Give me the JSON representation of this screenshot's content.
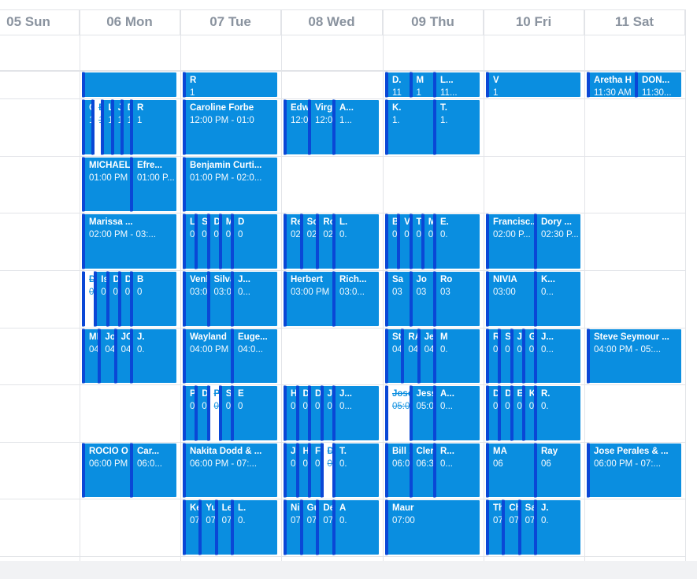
{
  "days": [
    "05 Sun",
    "06 Mon",
    "07 Tue",
    "08 Wed",
    "09 Thu",
    "10 Fri",
    "11 Sat"
  ],
  "events": [
    {
      "day": 1,
      "row": 0,
      "title": "",
      "time": ""
    },
    {
      "day": 1,
      "row": 1,
      "title": "C",
      "time": "1"
    },
    {
      "day": 1,
      "row": 1,
      "title": "B",
      "time": "1",
      "cancelled": true
    },
    {
      "day": 1,
      "row": 1,
      "title": "L",
      "time": "1"
    },
    {
      "day": 1,
      "row": 1,
      "title": "J",
      "time": "1"
    },
    {
      "day": 1,
      "row": 1,
      "title": "D",
      "time": "1"
    },
    {
      "day": 1,
      "row": 1,
      "title": "R",
      "time": "1"
    },
    {
      "day": 1,
      "row": 2,
      "title": "MICHAEL",
      "time": "01:00 PM"
    },
    {
      "day": 1,
      "row": 2,
      "title": "Efre...",
      "time": "01:00 P..."
    },
    {
      "day": 1,
      "row": 3,
      "title": "Marissa ...",
      "time": "02:00 PM - 03:..."
    },
    {
      "day": 1,
      "row": 4,
      "title": "Da",
      "time": "03",
      "cancelled": true
    },
    {
      "day": 1,
      "row": 4,
      "title": "Isa",
      "time": "03"
    },
    {
      "day": 1,
      "row": 4,
      "title": "Da",
      "time": "03"
    },
    {
      "day": 1,
      "row": 4,
      "title": "Da",
      "time": "03"
    },
    {
      "day": 1,
      "row": 4,
      "title": "B",
      "time": "0"
    },
    {
      "day": 1,
      "row": 5,
      "title": "MEL",
      "time": "04"
    },
    {
      "day": 1,
      "row": 5,
      "title": "Jos",
      "time": "04"
    },
    {
      "day": 1,
      "row": 5,
      "title": "JOS",
      "time": "04"
    },
    {
      "day": 1,
      "row": 5,
      "title": "J.",
      "time": "0."
    },
    {
      "day": 1,
      "row": 7,
      "title": "ROCIO O",
      "time": "06:00 PM"
    },
    {
      "day": 1,
      "row": 7,
      "title": "Car...",
      "time": "06:0..."
    },
    {
      "day": 2,
      "row": 0,
      "title": "R",
      "time": "1"
    },
    {
      "day": 2,
      "row": 1,
      "title": "Caroline Forbe",
      "time": "12:00 PM - 01:0"
    },
    {
      "day": 2,
      "row": 2,
      "title": "Benjamin Curti...",
      "time": "01:00 PM - 02:0..."
    },
    {
      "day": 2,
      "row": 3,
      "title": "Le",
      "time": "02"
    },
    {
      "day": 2,
      "row": 3,
      "title": "St",
      "time": "02"
    },
    {
      "day": 2,
      "row": 3,
      "title": "Da",
      "time": "02"
    },
    {
      "day": 2,
      "row": 3,
      "title": "M.",
      "time": "02"
    },
    {
      "day": 2,
      "row": 3,
      "title": "D",
      "time": "0"
    },
    {
      "day": 2,
      "row": 4,
      "title": "Venk",
      "time": "03:00"
    },
    {
      "day": 2,
      "row": 4,
      "title": "Silva",
      "time": "03:00"
    },
    {
      "day": 2,
      "row": 4,
      "title": "J...",
      "time": "0..."
    },
    {
      "day": 2,
      "row": 5,
      "title": "Wayland",
      "time": "04:00 PM"
    },
    {
      "day": 2,
      "row": 5,
      "title": "Euge...",
      "time": "04:0..."
    },
    {
      "day": 2,
      "row": 6,
      "title": "Pa",
      "time": "05"
    },
    {
      "day": 2,
      "row": 6,
      "title": "De",
      "time": "05"
    },
    {
      "day": 2,
      "row": 6,
      "title": "PJ",
      "time": "05",
      "cancelled": true
    },
    {
      "day": 2,
      "row": 6,
      "title": "Sh",
      "time": "05"
    },
    {
      "day": 2,
      "row": 6,
      "title": "E",
      "time": "0"
    },
    {
      "day": 2,
      "row": 7,
      "title": "Nakita Dodd & ...",
      "time": "06:00 PM - 07:..."
    },
    {
      "day": 2,
      "row": 8,
      "title": "Kei",
      "time": "07"
    },
    {
      "day": 2,
      "row": 8,
      "title": "Yul",
      "time": "07"
    },
    {
      "day": 2,
      "row": 8,
      "title": "Leo",
      "time": "07"
    },
    {
      "day": 2,
      "row": 8,
      "title": "L.",
      "time": "0."
    },
    {
      "day": 3,
      "row": 1,
      "title": "Edwa",
      "time": "12:00"
    },
    {
      "day": 3,
      "row": 1,
      "title": "Virgil",
      "time": "12:00"
    },
    {
      "day": 3,
      "row": 1,
      "title": "A...",
      "time": "1..."
    },
    {
      "day": 3,
      "row": 3,
      "title": "Ren",
      "time": "02"
    },
    {
      "day": 3,
      "row": 3,
      "title": "Sco",
      "time": "02"
    },
    {
      "day": 3,
      "row": 3,
      "title": "Rob",
      "time": "02"
    },
    {
      "day": 3,
      "row": 3,
      "title": "L.",
      "time": "0."
    },
    {
      "day": 3,
      "row": 4,
      "title": "Herbert",
      "time": "03:00 PM"
    },
    {
      "day": 3,
      "row": 4,
      "title": "Rich...",
      "time": "03:0..."
    },
    {
      "day": 3,
      "row": 6,
      "title": "H.",
      "time": "0."
    },
    {
      "day": 3,
      "row": 6,
      "title": "D.",
      "time": "0."
    },
    {
      "day": 3,
      "row": 6,
      "title": "D.",
      "time": "0."
    },
    {
      "day": 3,
      "row": 6,
      "title": "J.",
      "time": "0."
    },
    {
      "day": 3,
      "row": 6,
      "title": "J...",
      "time": "0..."
    },
    {
      "day": 3,
      "row": 7,
      "title": "J.",
      "time": "0."
    },
    {
      "day": 3,
      "row": 7,
      "title": "H",
      "time": "0"
    },
    {
      "day": 3,
      "row": 7,
      "title": "F",
      "time": "0"
    },
    {
      "day": 3,
      "row": 7,
      "title": "D",
      "time": "0",
      "cancelled": true
    },
    {
      "day": 3,
      "row": 7,
      "title": "T.",
      "time": "0."
    },
    {
      "day": 3,
      "row": 8,
      "title": "Nira",
      "time": "07"
    },
    {
      "day": 3,
      "row": 8,
      "title": "Gus",
      "time": "07"
    },
    {
      "day": 3,
      "row": 8,
      "title": "Dea...",
      "time": "07:0..."
    },
    {
      "day": 3,
      "row": 8,
      "title": "A",
      "time": "0."
    },
    {
      "day": 4,
      "row": 0,
      "title": "D.",
      "time": "11"
    },
    {
      "day": 4,
      "row": 0,
      "title": "M",
      "time": "1"
    },
    {
      "day": 4,
      "row": 0,
      "title": "L...",
      "time": "11..."
    },
    {
      "day": 4,
      "row": 1,
      "title": "K.",
      "time": "1."
    },
    {
      "day": 4,
      "row": 1,
      "title": "T.",
      "time": "1."
    },
    {
      "day": 4,
      "row": 3,
      "title": "B.",
      "time": "0."
    },
    {
      "day": 4,
      "row": 3,
      "title": "V.",
      "time": "0."
    },
    {
      "day": 4,
      "row": 3,
      "title": "T.",
      "time": "0."
    },
    {
      "day": 4,
      "row": 3,
      "title": "M...",
      "time": "0..."
    },
    {
      "day": 4,
      "row": 3,
      "title": "E.",
      "time": "0."
    },
    {
      "day": 4,
      "row": 4,
      "title": "Sa",
      "time": "03"
    },
    {
      "day": 4,
      "row": 4,
      "title": "Jo",
      "time": "03"
    },
    {
      "day": 4,
      "row": 4,
      "title": "Ro",
      "time": "03"
    },
    {
      "day": 4,
      "row": 5,
      "title": "Ste",
      "time": "04"
    },
    {
      "day": 4,
      "row": 5,
      "title": "RAY",
      "time": "04"
    },
    {
      "day": 4,
      "row": 5,
      "title": "Jere...",
      "time": "04:0..."
    },
    {
      "day": 4,
      "row": 5,
      "title": "M",
      "time": "0."
    },
    {
      "day": 4,
      "row": 6,
      "title": "Jose",
      "time": "05:00",
      "cancelled": true
    },
    {
      "day": 4,
      "row": 6,
      "title": "Jesse",
      "time": "05:00 P"
    },
    {
      "day": 4,
      "row": 6,
      "title": "A...",
      "time": "0..."
    },
    {
      "day": 4,
      "row": 7,
      "title": "Bill ...",
      "time": "06:00 P..."
    },
    {
      "day": 4,
      "row": 7,
      "title": "Clerv",
      "time": "06:30"
    },
    {
      "day": 4,
      "row": 7,
      "title": "R...",
      "time": "0..."
    },
    {
      "day": 4,
      "row": 8,
      "title": "Maur",
      "time": "07:00"
    },
    {
      "day": 5,
      "row": 0,
      "title": "V",
      "time": "1"
    },
    {
      "day": 5,
      "row": 3,
      "title": "Francisc...",
      "time": "02:00 P..."
    },
    {
      "day": 5,
      "row": 3,
      "title": "Dory ...",
      "time": "02:30 P..."
    },
    {
      "day": 5,
      "row": 4,
      "title": "NIVIA",
      "time": "03:00"
    },
    {
      "day": 5,
      "row": 4,
      "title": "K...",
      "time": "0..."
    },
    {
      "day": 5,
      "row": 5,
      "title": "R.",
      "time": "0."
    },
    {
      "day": 5,
      "row": 5,
      "title": "S.",
      "time": "0."
    },
    {
      "day": 5,
      "row": 5,
      "title": "J...",
      "time": "0..."
    },
    {
      "day": 5,
      "row": 5,
      "title": "G",
      "time": "0"
    },
    {
      "day": 5,
      "row": 5,
      "title": "J...",
      "time": "0..."
    },
    {
      "day": 5,
      "row": 6,
      "title": "D.",
      "time": "0."
    },
    {
      "day": 5,
      "row": 6,
      "title": "D.",
      "time": "0."
    },
    {
      "day": 5,
      "row": 6,
      "title": "E.",
      "time": "0."
    },
    {
      "day": 5,
      "row": 6,
      "title": "K",
      "time": "0"
    },
    {
      "day": 5,
      "row": 6,
      "title": "R.",
      "time": "0."
    },
    {
      "day": 5,
      "row": 7,
      "title": "MA",
      "time": "06"
    },
    {
      "day": 5,
      "row": 7,
      "title": "Ray",
      "time": "06"
    },
    {
      "day": 5,
      "row": 8,
      "title": "Tho",
      "time": "07"
    },
    {
      "day": 5,
      "row": 8,
      "title": "Chr",
      "time": "07"
    },
    {
      "day": 5,
      "row": 8,
      "title": "Sar",
      "time": "07"
    },
    {
      "day": 5,
      "row": 8,
      "title": "J.",
      "time": "0."
    },
    {
      "day": 6,
      "row": 0,
      "title": "Aretha H",
      "time": "11:30 AM"
    },
    {
      "day": 6,
      "row": 0,
      "title": "DON...",
      "time": "11:30..."
    },
    {
      "day": 6,
      "row": 5,
      "title": "Steve Seymour ...",
      "time": "04:00 PM - 05:..."
    },
    {
      "day": 6,
      "row": 7,
      "title": "Jose Perales & ...",
      "time": "06:00 PM - 07:..."
    }
  ]
}
